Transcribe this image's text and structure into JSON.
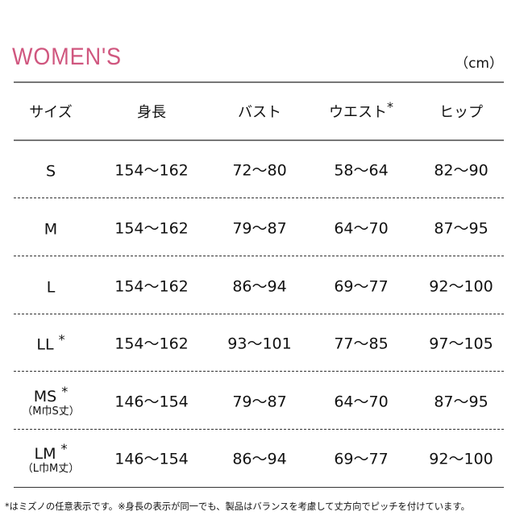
{
  "title": "WOMEN'S",
  "unit": "（cm）",
  "colors": {
    "title": "#d0577f"
  },
  "headers": [
    "サイズ",
    "身長",
    "バスト",
    "ウエスト",
    "ヒップ"
  ],
  "header_marks": [
    "",
    "",
    "",
    "*",
    ""
  ],
  "rows": [
    {
      "size": "S",
      "mark": "",
      "note": "",
      "height": "154～162",
      "bust": "72～80",
      "waist": "58～64",
      "hip": "82～90"
    },
    {
      "size": "M",
      "mark": "",
      "note": "",
      "height": "154～162",
      "bust": "79～87",
      "waist": "64～70",
      "hip": "87～95"
    },
    {
      "size": "L",
      "mark": "",
      "note": "",
      "height": "154～162",
      "bust": "86～94",
      "waist": "69～77",
      "hip": "92～100"
    },
    {
      "size": "LL",
      "mark": "*",
      "note": "",
      "height": "154～162",
      "bust": "93～101",
      "waist": "77～85",
      "hip": "97～105"
    },
    {
      "size": "MS",
      "mark": "*",
      "note": "（M巾S丈）",
      "height": "146～154",
      "bust": "79～87",
      "waist": "64～70",
      "hip": "87～95"
    },
    {
      "size": "LM",
      "mark": "*",
      "note": "（L巾M丈）",
      "height": "146～154",
      "bust": "86～94",
      "waist": "69～77",
      "hip": "92～100"
    }
  ],
  "footnote": "*はミズノの任意表示です。※身長の表示が同一でも、製品はバランスを考慮して丈方向でピッチを付けています。"
}
